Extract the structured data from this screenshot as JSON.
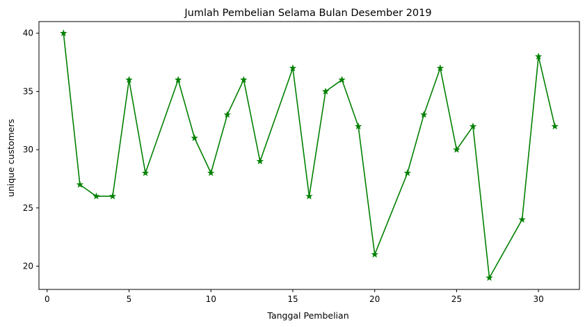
{
  "chart_data": {
    "type": "line",
    "title": "Jumlah Pembelian Selama Bulan Desember 2019",
    "xlabel": "Tanggal Pembelian",
    "ylabel": "unique customers",
    "xlim": [
      -0.5,
      32.5
    ],
    "ylim": [
      18.0,
      41.0
    ],
    "xticks": [
      0,
      5,
      10,
      15,
      20,
      25,
      30
    ],
    "yticks": [
      20,
      25,
      30,
      35,
      40
    ],
    "grid": false,
    "series": [
      {
        "color": "#008000",
        "marker": "star",
        "x": [
          1,
          2,
          3,
          4,
          5,
          6,
          8,
          9,
          10,
          11,
          12,
          13,
          15,
          16,
          17,
          18,
          19,
          20,
          22,
          23,
          24,
          25,
          26,
          27,
          29,
          30,
          31
        ],
        "y": [
          40,
          27,
          26,
          26,
          36,
          28,
          36,
          31,
          28,
          33,
          36,
          29,
          37,
          26,
          35,
          36,
          32,
          21,
          28,
          33,
          37,
          30,
          32,
          19,
          24,
          38,
          32
        ]
      }
    ]
  }
}
